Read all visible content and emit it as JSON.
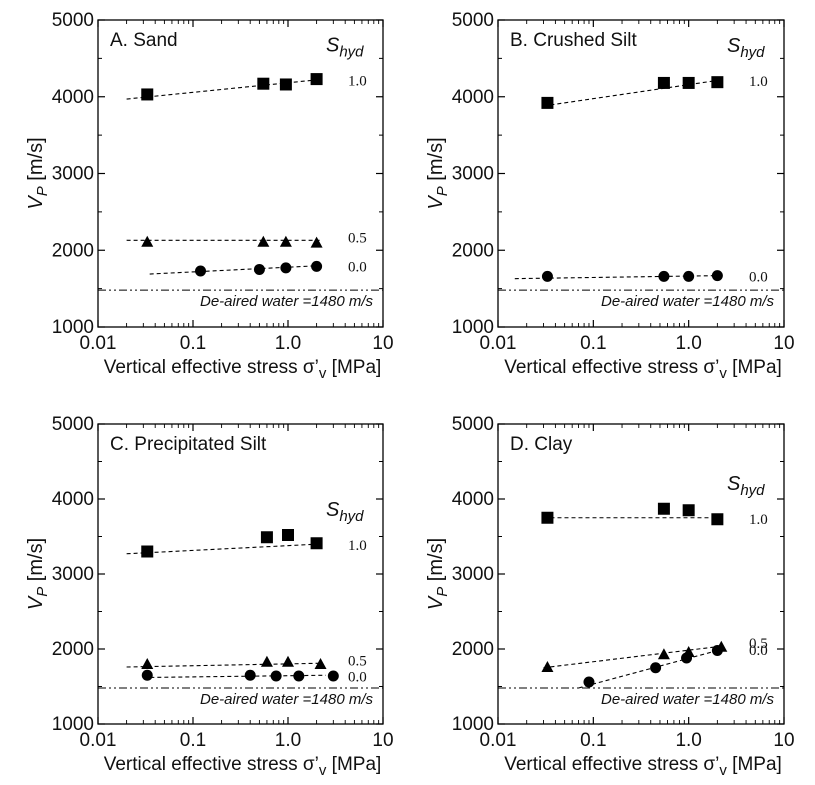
{
  "chart_data": [
    {
      "panel": "A",
      "type": "scatter",
      "title": "A.  Sand",
      "xlabel": "Vertical effective stress σ’v [MPa]",
      "ylabel": "VP [m/s]",
      "xscale": "log",
      "xlim": [
        0.01,
        10
      ],
      "ylim": [
        1000,
        5000
      ],
      "xticks": [
        "0.01",
        "0.1",
        "1.0",
        "10"
      ],
      "yticks": [
        "1000",
        "2000",
        "3000",
        "4000",
        "5000"
      ],
      "legend_title": "Shyd",
      "series": [
        {
          "name": "1.0",
          "marker": "square",
          "x": [
            0.033,
            0.55,
            0.95,
            2.0
          ],
          "y": [
            4030,
            4170,
            4160,
            4230
          ],
          "fit_x": [
            0.02,
            2.2
          ],
          "fit_y": [
            3970,
            4225
          ]
        },
        {
          "name": "0.5",
          "marker": "triangle",
          "x": [
            0.033,
            0.55,
            0.95,
            2.0
          ],
          "y": [
            2110,
            2110,
            2110,
            2100
          ],
          "fit_x": [
            0.02,
            2.2
          ],
          "fit_y": [
            2130,
            2130
          ]
        },
        {
          "name": "0.0",
          "marker": "circle",
          "x": [
            0.12,
            0.5,
            0.95,
            2.0
          ],
          "y": [
            1730,
            1750,
            1770,
            1790
          ],
          "fit_x": [
            0.035,
            2.2
          ],
          "fit_y": [
            1690,
            1800
          ]
        }
      ],
      "reference_line": {
        "label": "De-aired water =1480 m/s",
        "y": 1480
      }
    },
    {
      "panel": "B",
      "type": "scatter",
      "title": "B. Crushed Silt",
      "xlabel": "Vertical effective stress σ’v [MPa]",
      "ylabel": "VP [m/s]",
      "xscale": "log",
      "xlim": [
        0.01,
        10
      ],
      "ylim": [
        1000,
        5000
      ],
      "xticks": [
        "0.01",
        "0.1",
        "1.0",
        "10"
      ],
      "yticks": [
        "1000",
        "2000",
        "3000",
        "4000",
        "5000"
      ],
      "legend_title": "Shyd",
      "series": [
        {
          "name": "1.0",
          "marker": "square",
          "x": [
            0.033,
            0.55,
            1.0,
            2.0
          ],
          "y": [
            3920,
            4180,
            4180,
            4190
          ],
          "fit_x": [
            0.03,
            2.2
          ],
          "fit_y": [
            3880,
            4220
          ]
        },
        {
          "name": "0.0",
          "marker": "circle",
          "x": [
            0.033,
            0.55,
            1.0,
            2.0
          ],
          "y": [
            1660,
            1660,
            1660,
            1670
          ],
          "fit_x": [
            0.015,
            2.2
          ],
          "fit_y": [
            1630,
            1670
          ]
        }
      ],
      "reference_line": {
        "label": "De-aired water =1480 m/s",
        "y": 1480
      }
    },
    {
      "panel": "C",
      "type": "scatter",
      "title": "C. Precipitated Silt",
      "xlabel": "Vertical effective stress σ’v [MPa]",
      "ylabel": "VP [m/s]",
      "xscale": "log",
      "xlim": [
        0.01,
        10
      ],
      "ylim": [
        1000,
        5000
      ],
      "xticks": [
        "0.01",
        "0.1",
        "1.0",
        "10"
      ],
      "yticks": [
        "1000",
        "2000",
        "3000",
        "4000",
        "5000"
      ],
      "legend_title": "Shyd",
      "series": [
        {
          "name": "1.0",
          "marker": "square",
          "x": [
            0.033,
            0.6,
            1.0,
            2.0
          ],
          "y": [
            3300,
            3490,
            3520,
            3410
          ],
          "fit_x": [
            0.02,
            2.2
          ],
          "fit_y": [
            3270,
            3400
          ]
        },
        {
          "name": "0.5",
          "marker": "triangle",
          "x": [
            0.033,
            0.6,
            1.0,
            2.2
          ],
          "y": [
            1800,
            1830,
            1830,
            1800
          ],
          "fit_x": [
            0.02,
            2.2
          ],
          "fit_y": [
            1760,
            1810
          ]
        },
        {
          "name": "0.0",
          "marker": "circle",
          "x": [
            0.033,
            0.4,
            0.75,
            1.3,
            3.0
          ],
          "y": [
            1650,
            1650,
            1640,
            1640,
            1640
          ],
          "fit_x": [
            0.03,
            2.5
          ],
          "fit_y": [
            1620,
            1650
          ]
        }
      ],
      "reference_line": {
        "label": "De-aired water =1480 m/s",
        "y": 1480
      }
    },
    {
      "panel": "D",
      "type": "scatter",
      "title": "D. Clay",
      "xlabel": "Vertical effective stress σ’v [MPa]",
      "ylabel": "VP [m/s]",
      "xscale": "log",
      "xlim": [
        0.01,
        10
      ],
      "ylim": [
        1000,
        5000
      ],
      "xticks": [
        "0.01",
        "0.1",
        "1.0",
        "10"
      ],
      "yticks": [
        "1000",
        "2000",
        "3000",
        "4000",
        "5000"
      ],
      "legend_title": "Shyd",
      "series": [
        {
          "name": "1.0",
          "marker": "square",
          "x": [
            0.033,
            0.55,
            1.0,
            2.0
          ],
          "y": [
            3750,
            3870,
            3850,
            3730
          ],
          "fit_x": [
            0.03,
            2.2
          ],
          "fit_y": [
            3750,
            3750
          ]
        },
        {
          "name": "0.5",
          "marker": "triangle",
          "x": [
            0.033,
            0.55,
            1.0,
            2.2
          ],
          "y": [
            1760,
            1930,
            1960,
            2030
          ],
          "fit_x": [
            0.03,
            2.3
          ],
          "fit_y": [
            1750,
            2040
          ]
        },
        {
          "name": "0.0",
          "marker": "circle",
          "x": [
            0.09,
            0.45,
            0.95,
            2.0
          ],
          "y": [
            1560,
            1750,
            1880,
            1980
          ],
          "fit_x": [
            0.07,
            2.3
          ],
          "fit_y": [
            1480,
            2000
          ]
        }
      ],
      "reference_line": {
        "label": "De-aired water =1480 m/s",
        "y": 1480
      }
    }
  ]
}
